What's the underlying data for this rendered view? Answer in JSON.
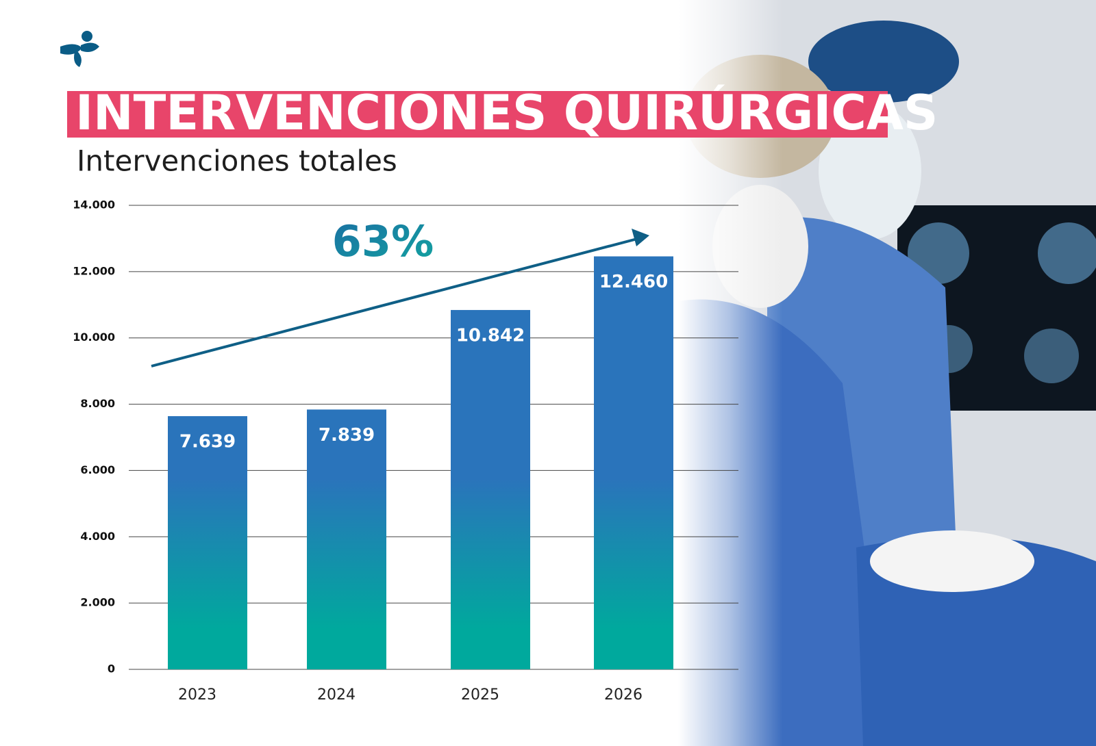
{
  "chart_data": {
    "type": "bar",
    "title": "INTERVENCIONES QUIRÚRGICAS",
    "subtitle": "Intervenciones totales",
    "annotation": "63%",
    "categories": [
      "2023",
      "2024",
      "2025",
      "2026"
    ],
    "values": [
      7639,
      7839,
      10842,
      12460
    ],
    "value_labels": [
      "7.639",
      "7.839",
      "10.842",
      "12.460"
    ],
    "ylim": [
      0,
      14000
    ],
    "yticks": [
      0,
      {
        "value": 2000,
        "label": "2.000"
      },
      {
        "value": 4000,
        "label": "4.000"
      },
      {
        "value": 6000,
        "label": "6.000"
      },
      {
        "value": 8000,
        "label": "8.000"
      },
      {
        "value": 10000,
        "label": "10.000"
      },
      {
        "value": 12000,
        "label": "12.000"
      },
      {
        "value": 14000,
        "label": "14.000"
      }
    ],
    "grid": true,
    "color": "#2a74bb"
  }
}
